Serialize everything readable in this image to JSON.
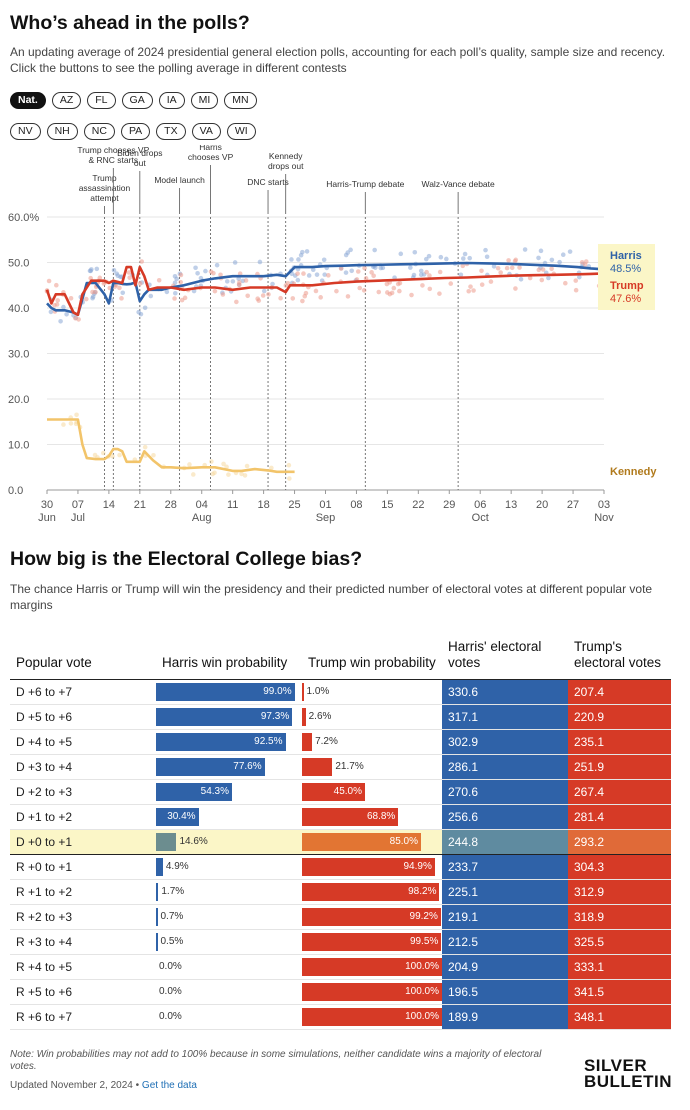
{
  "top": {
    "title": "Who’s ahead in the polls?",
    "subtitle": "An updating average of 2024 presidential general election polls, accounting for each poll’s quality, sample size and recency. Click the buttons to see the polling average in different contests",
    "pills_row1": [
      "Nat.",
      "AZ",
      "FL",
      "GA",
      "IA",
      "MI",
      "MN"
    ],
    "pills_row2": [
      "NV",
      "NH",
      "NC",
      "PA",
      "TX",
      "VA",
      "WI"
    ],
    "active_pill": "Nat."
  },
  "colors": {
    "harris": "#2f62a8",
    "trump": "#d63a26",
    "kennedy": "#f2c46a",
    "kennedy_label": "#b07a1c",
    "highlight": "#fbf6c7"
  },
  "chart_data": {
    "type": "line",
    "ylim": [
      0,
      60
    ],
    "yticks": [
      "0.0",
      "10.0",
      "20.0",
      "30.0",
      "40.0",
      "50.0",
      "60.0%"
    ],
    "xticks": [
      {
        "day": 0,
        "label": "30",
        "month": "Jun"
      },
      {
        "day": 7,
        "label": "07",
        "month": "Jul"
      },
      {
        "day": 14,
        "label": "14"
      },
      {
        "day": 21,
        "label": "21"
      },
      {
        "day": 28,
        "label": "28"
      },
      {
        "day": 35,
        "label": "04",
        "month": "Aug"
      },
      {
        "day": 42,
        "label": "11"
      },
      {
        "day": 49,
        "label": "18"
      },
      {
        "day": 56,
        "label": "25"
      },
      {
        "day": 63,
        "label": "01",
        "month": "Sep"
      },
      {
        "day": 70,
        "label": "08"
      },
      {
        "day": 77,
        "label": "15"
      },
      {
        "day": 84,
        "label": "22"
      },
      {
        "day": 91,
        "label": "29"
      },
      {
        "day": 98,
        "label": "06",
        "month": "Oct"
      },
      {
        "day": 105,
        "label": "13"
      },
      {
        "day": 112,
        "label": "20"
      },
      {
        "day": 119,
        "label": "27"
      },
      {
        "day": 126,
        "label": "03",
        "month": "Nov"
      }
    ],
    "events": [
      {
        "day": 13,
        "lines": [
          "Trump",
          "assassination",
          "attempt"
        ]
      },
      {
        "day": 15,
        "lines": [
          "Trump chooses VP",
          "& RNC starts"
        ]
      },
      {
        "day": 21,
        "lines": [
          "Biden drops",
          "out"
        ]
      },
      {
        "day": 30,
        "lines": [
          "Model launch"
        ]
      },
      {
        "day": 37,
        "lines": [
          "Harris",
          "chooses VP"
        ]
      },
      {
        "day": 50,
        "lines": [
          "DNC starts"
        ]
      },
      {
        "day": 54,
        "lines": [
          "Kennedy",
          "drops out"
        ]
      },
      {
        "day": 72,
        "lines": [
          "Harris-Trump debate"
        ]
      },
      {
        "day": 93,
        "lines": [
          "Walz-Vance debate"
        ]
      }
    ],
    "series": [
      {
        "name": "Harris",
        "label": "48.5%",
        "x": [
          0,
          1,
          2,
          4,
          6,
          7,
          8,
          9,
          11,
          13,
          14,
          15,
          16,
          17,
          18,
          19,
          20,
          21,
          22,
          23,
          26,
          28,
          31,
          35,
          38,
          42,
          46,
          49,
          52,
          54,
          56,
          60,
          63,
          67,
          70,
          75,
          80,
          85,
          90,
          95,
          100,
          105,
          110,
          115,
          120,
          123,
          126
        ],
        "y": [
          41,
          40,
          39.5,
          39.5,
          39,
          38.5,
          42,
          45.5,
          45.5,
          43,
          41,
          45.5,
          45.5,
          45.3,
          45.2,
          45.3,
          45.6,
          41.5,
          43,
          44,
          44,
          44.5,
          45,
          46,
          46.5,
          47,
          47,
          47,
          47.3,
          47,
          49,
          49,
          49.2,
          49.3,
          49.4,
          49.5,
          49.6,
          49.7,
          49.8,
          49.9,
          49.8,
          49.7,
          49.5,
          49.3,
          49,
          48.7,
          48.5
        ]
      },
      {
        "name": "Trump",
        "label": "47.6%",
        "x": [
          0,
          1,
          2,
          4,
          6,
          7,
          8,
          10,
          12,
          13,
          14,
          15,
          17,
          18,
          19,
          20,
          21,
          22,
          23,
          25,
          28,
          31,
          35,
          38,
          42,
          46,
          49,
          52,
          54,
          55,
          60,
          65,
          70,
          75,
          80,
          85,
          90,
          95,
          100,
          105,
          110,
          115,
          120,
          123,
          126
        ],
        "y": [
          44,
          41,
          43,
          43,
          39,
          38.5,
          43,
          46,
          46,
          46,
          45.5,
          46,
          45.5,
          49,
          49,
          45,
          49,
          47,
          44,
          44.5,
          44.5,
          44,
          44.5,
          44.5,
          44,
          44.5,
          44.5,
          44.5,
          43.5,
          45,
          45,
          45.5,
          45.8,
          46,
          46.2,
          46.4,
          46.6,
          46.7,
          46.9,
          47.1,
          47.2,
          47.3,
          47.4,
          47.5,
          47.6
        ]
      },
      {
        "name": "Kennedy",
        "label": "",
        "x": [
          0,
          2,
          4,
          6,
          7,
          8,
          9,
          11,
          13,
          14,
          15,
          16,
          17,
          18,
          20,
          21,
          22,
          24,
          26,
          28,
          31,
          35,
          38,
          42,
          44,
          47,
          50,
          52,
          56
        ],
        "y": [
          15.5,
          15.5,
          15.5,
          15.5,
          15.5,
          10,
          7,
          6.8,
          6.8,
          7.5,
          9,
          9,
          8.5,
          6.2,
          6.2,
          6.2,
          8.5,
          6.5,
          5,
          5,
          4.8,
          5,
          5,
          4.2,
          4.2,
          4.6,
          4.3,
          4,
          4
        ]
      }
    ]
  },
  "bias": {
    "title": "How big is the Electoral College bias?",
    "subtitle": "The chance Harris or Trump will win the presidency and their predicted number of electoral votes at different popular vote margins",
    "headers": [
      "Popular vote",
      "Harris win probability",
      "Trump win probability",
      "Harris' electoral votes",
      "Trump's electoral votes"
    ],
    "highlight_row": 6,
    "rows": [
      {
        "pv": "D +6 to +7",
        "hp": 99.0,
        "hl": "99.0%",
        "tp": 1.0,
        "tl": "1.0%",
        "hev": "330.6",
        "tev": "207.4"
      },
      {
        "pv": "D +5 to +6",
        "hp": 97.3,
        "hl": "97.3%",
        "tp": 2.6,
        "tl": "2.6%",
        "hev": "317.1",
        "tev": "220.9"
      },
      {
        "pv": "D +4 to +5",
        "hp": 92.5,
        "hl": "92.5%",
        "tp": 7.2,
        "tl": "7.2%",
        "hev": "302.9",
        "tev": "235.1"
      },
      {
        "pv": "D +3 to +4",
        "hp": 77.6,
        "hl": "77.6%",
        "tp": 21.7,
        "tl": "21.7%",
        "hev": "286.1",
        "tev": "251.9"
      },
      {
        "pv": "D +2 to +3",
        "hp": 54.3,
        "hl": "54.3%",
        "tp": 45.0,
        "tl": "45.0%",
        "hev": "270.6",
        "tev": "267.4"
      },
      {
        "pv": "D +1 to +2",
        "hp": 30.4,
        "hl": "30.4%",
        "tp": 68.8,
        "tl": "68.8%",
        "hev": "256.6",
        "tev": "281.4"
      },
      {
        "pv": "D +0 to +1",
        "hp": 14.6,
        "hl": "14.6%",
        "tp": 85.0,
        "tl": "85.0%",
        "hev": "244.8",
        "tev": "293.2"
      },
      {
        "pv": "R +0 to +1",
        "hp": 4.9,
        "hl": "4.9%",
        "tp": 94.9,
        "tl": "94.9%",
        "hev": "233.7",
        "tev": "304.3"
      },
      {
        "pv": "R +1 to +2",
        "hp": 1.7,
        "hl": "1.7%",
        "tp": 98.2,
        "tl": "98.2%",
        "hev": "225.1",
        "tev": "312.9"
      },
      {
        "pv": "R +2 to +3",
        "hp": 0.7,
        "hl": "0.7%",
        "tp": 99.2,
        "tl": "99.2%",
        "hev": "219.1",
        "tev": "318.9"
      },
      {
        "pv": "R +3 to +4",
        "hp": 0.5,
        "hl": "0.5%",
        "tp": 99.5,
        "tl": "99.5%",
        "hev": "212.5",
        "tev": "325.5"
      },
      {
        "pv": "R +4 to +5",
        "hp": 0.0,
        "hl": "0.0%",
        "tp": 100.0,
        "tl": "100.0%",
        "hev": "204.9",
        "tev": "333.1"
      },
      {
        "pv": "R +5 to +6",
        "hp": 0.0,
        "hl": "0.0%",
        "tp": 100.0,
        "tl": "100.0%",
        "hev": "196.5",
        "tev": "341.5"
      },
      {
        "pv": "R +6 to +7",
        "hp": 0.0,
        "hl": "0.0%",
        "tp": 100.0,
        "tl": "100.0%",
        "hev": "189.9",
        "tev": "348.1"
      }
    ]
  },
  "footer": {
    "note": "Note: Win probabilities may not add to 100% because in some simulations, neither candidate wins a majority of electoral votes.",
    "updated": "Updated November 2, 2024",
    "separator": " • ",
    "link": "Get the data",
    "logo_line1": "SILVER",
    "logo_line2": "BULLETIN"
  }
}
